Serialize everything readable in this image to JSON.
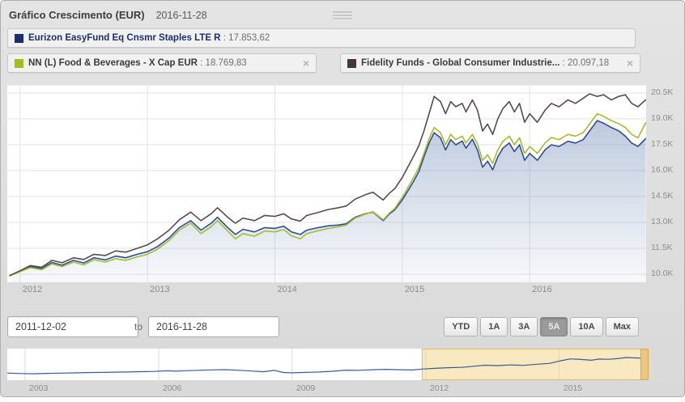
{
  "header": {
    "title": "Gráfico Crescimento (EUR)",
    "date": "2016-11-28"
  },
  "legend_sep": " : ",
  "close_glyph": "×",
  "legend": [
    {
      "name": "Eurizon EasyFund Eq Cnsmr Staples LTE R",
      "value": "17.853,62",
      "color": "#1b2f6d",
      "closable": false
    },
    {
      "name": "NN (L) Food & Beverages - X Cap EUR",
      "value": "18.769,83",
      "color": "#a4bd27",
      "closable": true
    },
    {
      "name": "Fidelity Funds - Global Consumer Industrie...",
      "value": "20.097,18",
      "color": "#443639",
      "closable": true
    }
  ],
  "range": {
    "from": "2011-12-02",
    "to_word": "to",
    "to": "2016-11-28",
    "buttons": [
      {
        "label": "YTD",
        "selected": false
      },
      {
        "label": "1A",
        "selected": false
      },
      {
        "label": "3A",
        "selected": false
      },
      {
        "label": "5A",
        "selected": true
      },
      {
        "label": "10A",
        "selected": false
      },
      {
        "label": "Max",
        "selected": false
      }
    ]
  },
  "chart_data": {
    "type": "line",
    "xlim": [
      2011.9,
      2016.914
    ],
    "ylim": [
      9.53,
      20.92
    ],
    "grid": true,
    "y_ticks": [
      {
        "v": 20.5,
        "label": "20.5K"
      },
      {
        "v": 19.0,
        "label": "19.0K"
      },
      {
        "v": 17.5,
        "label": "17.5K"
      },
      {
        "v": 16.0,
        "label": "16.0K"
      },
      {
        "v": 14.5,
        "label": "14.5K"
      },
      {
        "v": 13.0,
        "label": "13.0K"
      },
      {
        "v": 11.5,
        "label": "11.5K"
      },
      {
        "v": 10.0,
        "label": "10.0K"
      }
    ],
    "x_ticks": [
      {
        "v": 2012,
        "label": "2012"
      },
      {
        "v": 2013,
        "label": "2013"
      },
      {
        "v": 2014,
        "label": "2014"
      },
      {
        "v": 2015,
        "label": "2015"
      },
      {
        "v": 2016,
        "label": "2016"
      }
    ],
    "x": [
      2011.92,
      2012.0,
      2012.08,
      2012.17,
      2012.25,
      2012.33,
      2012.42,
      2012.5,
      2012.58,
      2012.67,
      2012.75,
      2012.83,
      2012.92,
      2013.0,
      2013.08,
      2013.17,
      2013.25,
      2013.34,
      2013.42,
      2013.5,
      2013.55,
      2013.63,
      2013.69,
      2013.75,
      2013.84,
      2013.92,
      2014.0,
      2014.07,
      2014.13,
      2014.2,
      2014.25,
      2014.34,
      2014.42,
      2014.5,
      2014.56,
      2014.63,
      2014.71,
      2014.77,
      2014.85,
      2014.9,
      2014.94,
      2015.0,
      2015.05,
      2015.09,
      2015.13,
      2015.17,
      2015.21,
      2015.25,
      2015.3,
      2015.34,
      2015.38,
      2015.42,
      2015.47,
      2015.5,
      2015.55,
      2015.59,
      2015.63,
      2015.67,
      2015.71,
      2015.75,
      2015.79,
      2015.84,
      2015.88,
      2015.92,
      2015.96,
      2016.0,
      2016.06,
      2016.12,
      2016.17,
      2016.23,
      2016.3,
      2016.36,
      2016.42,
      2016.47,
      2016.53,
      2016.58,
      2016.64,
      2016.7,
      2016.75,
      2016.8,
      2016.85,
      2016.91
    ],
    "series": [
      {
        "name": "Eurizon EasyFund Eq Cnsmr Staples LTE R",
        "color": "#2f4f92",
        "final_value": "17.853,62",
        "area_fill": true,
        "values": [
          9.92,
          10.18,
          10.45,
          10.32,
          10.68,
          10.52,
          10.8,
          10.65,
          10.95,
          10.83,
          11.05,
          10.95,
          11.15,
          11.3,
          11.6,
          12.1,
          12.7,
          13.1,
          12.55,
          12.95,
          13.3,
          12.7,
          12.3,
          12.6,
          12.45,
          12.7,
          12.65,
          12.78,
          12.45,
          12.3,
          12.55,
          12.7,
          12.8,
          12.85,
          12.92,
          13.3,
          13.5,
          13.6,
          13.1,
          13.5,
          13.72,
          14.3,
          14.9,
          15.4,
          15.95,
          16.8,
          17.6,
          18.2,
          17.9,
          17.2,
          17.8,
          17.5,
          17.72,
          17.3,
          17.82,
          17.2,
          16.2,
          16.55,
          16.05,
          16.8,
          17.3,
          17.6,
          17.1,
          17.5,
          16.6,
          17.0,
          16.6,
          17.2,
          17.5,
          17.4,
          17.7,
          17.6,
          17.8,
          18.3,
          18.9,
          18.75,
          18.5,
          18.3,
          18.0,
          17.6,
          17.4,
          17.85
        ]
      },
      {
        "name": "NN (L) Food & Beverages - X Cap EUR",
        "color": "#a3bd31",
        "final_value": "18.769,83",
        "area_fill": false,
        "values": [
          9.92,
          10.14,
          10.38,
          10.26,
          10.6,
          10.44,
          10.7,
          10.54,
          10.84,
          10.7,
          10.9,
          10.8,
          11.0,
          11.15,
          11.45,
          11.95,
          12.55,
          12.95,
          12.35,
          12.75,
          13.1,
          12.5,
          12.05,
          12.35,
          12.2,
          12.5,
          12.45,
          12.58,
          12.22,
          12.05,
          12.35,
          12.52,
          12.65,
          12.75,
          12.85,
          13.25,
          13.48,
          13.62,
          13.15,
          13.55,
          13.8,
          14.45,
          15.1,
          15.62,
          16.18,
          17.0,
          17.85,
          18.5,
          18.2,
          17.5,
          18.1,
          17.8,
          18.0,
          17.6,
          18.1,
          17.55,
          16.6,
          16.92,
          16.42,
          17.2,
          17.7,
          18.0,
          17.5,
          17.9,
          17.0,
          17.4,
          17.0,
          17.6,
          17.92,
          17.8,
          18.1,
          18.0,
          18.2,
          18.7,
          19.3,
          19.15,
          18.9,
          18.72,
          18.5,
          18.1,
          17.9,
          18.77
        ]
      },
      {
        "name": "Fidelity Funds - Global Consumer Industrie...",
        "color": "#534d4b",
        "final_value": "20.097,18",
        "area_fill": false,
        "values": [
          9.92,
          10.2,
          10.5,
          10.4,
          10.8,
          10.66,
          10.95,
          10.85,
          11.15,
          11.08,
          11.35,
          11.28,
          11.5,
          11.7,
          12.05,
          12.55,
          13.15,
          13.6,
          13.1,
          13.5,
          13.85,
          13.3,
          12.95,
          13.25,
          13.1,
          13.4,
          13.35,
          13.5,
          13.2,
          13.08,
          13.4,
          13.58,
          13.75,
          13.85,
          13.95,
          14.35,
          14.6,
          14.75,
          14.3,
          14.7,
          14.95,
          15.6,
          16.3,
          16.85,
          17.45,
          18.3,
          19.3,
          20.3,
          20.0,
          19.3,
          20.0,
          19.7,
          19.9,
          19.4,
          20.1,
          19.5,
          18.3,
          18.7,
          18.1,
          19.0,
          19.6,
          20.0,
          19.4,
          19.9,
          18.8,
          19.3,
          18.8,
          19.5,
          19.9,
          19.7,
          20.1,
          19.9,
          20.2,
          20.45,
          20.3,
          20.4,
          20.1,
          20.3,
          20.4,
          19.9,
          19.7,
          20.1
        ]
      }
    ]
  },
  "navigator": {
    "type": "line",
    "color": "#3a5a96",
    "xlim": [
      2002.6,
      2016.95
    ],
    "ylim": [
      6.8,
      22.8
    ],
    "selection": [
      2011.92,
      2016.95
    ],
    "selection_fill": "rgba(244,215,140,0.55)",
    "selection_edge": "#ddb868",
    "x_ticks": [
      {
        "v": 2003,
        "label": "2003"
      },
      {
        "v": 2006,
        "label": "2006"
      },
      {
        "v": 2009,
        "label": "2009"
      },
      {
        "v": 2012,
        "label": "2012"
      },
      {
        "v": 2015,
        "label": "2015"
      }
    ],
    "x": [
      2002.6,
      2002.9,
      2003.2,
      2003.5,
      2003.8,
      2004.1,
      2004.4,
      2004.7,
      2005.0,
      2005.3,
      2005.6,
      2005.9,
      2006.2,
      2006.4,
      2006.6,
      2006.9,
      2007.2,
      2007.5,
      2007.8,
      2008.1,
      2008.35,
      2008.6,
      2008.8,
      2009.0,
      2009.3,
      2009.6,
      2009.9,
      2010.2,
      2010.5,
      2010.8,
      2011.1,
      2011.4,
      2011.7,
      2011.92,
      2012.2,
      2012.5,
      2012.8,
      2013.1,
      2013.34,
      2013.6,
      2013.9,
      2014.2,
      2014.5,
      2014.77,
      2015.0,
      2015.25,
      2015.5,
      2015.71,
      2015.9,
      2016.1,
      2016.3,
      2016.5,
      2016.7,
      2016.91
    ],
    "values": [
      10.4,
      10.15,
      10.05,
      10.25,
      10.35,
      10.5,
      10.65,
      10.75,
      10.85,
      10.95,
      11.1,
      11.25,
      11.55,
      11.35,
      11.6,
      11.8,
      12.0,
      12.15,
      11.8,
      11.45,
      11.05,
      11.75,
      10.7,
      10.55,
      10.75,
      10.95,
      11.3,
      11.9,
      11.8,
      12.1,
      12.3,
      12.1,
      11.95,
      12.4,
      12.8,
      13.1,
      13.3,
      13.9,
      14.4,
      14.2,
      14.5,
      14.3,
      14.9,
      15.3,
      16.5,
      17.6,
      17.3,
      16.9,
      17.5,
      17.4,
      17.7,
      18.3,
      18.1,
      17.9
    ]
  }
}
